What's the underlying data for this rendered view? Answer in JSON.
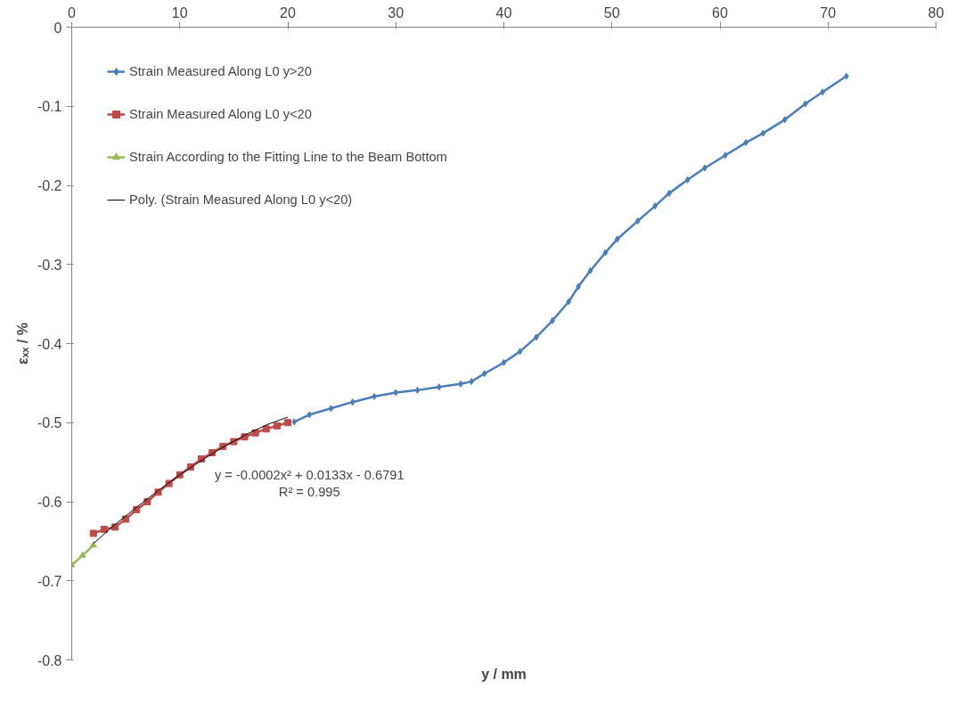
{
  "chart_data": {
    "type": "line",
    "xlabel": "y / mm",
    "ylabel": "εₓₓ / %",
    "xlim": [
      0,
      80
    ],
    "xticks": [
      0,
      10,
      20,
      30,
      40,
      50,
      60,
      70,
      80
    ],
    "ylim": [
      -0.8,
      0
    ],
    "yticks": [
      0,
      -0.1,
      -0.2,
      -0.3,
      -0.4,
      -0.5,
      -0.6,
      -0.7,
      -0.8
    ],
    "grid": false,
    "legend": "top left",
    "annotations": [
      "y = -0.0002x² + 0.0133x - 0.6791",
      "R² = 0.995"
    ],
    "series": [
      {
        "name": "Strain Measured Along L0 y>20",
        "color": "#4a7ebb",
        "marker": "diamond",
        "x": [
          20.6,
          22,
          24,
          26,
          28,
          30,
          32,
          34,
          36,
          37,
          38.2,
          40,
          41.5,
          43,
          44.5,
          46,
          46.9,
          48,
          49.4,
          50.5,
          52.4,
          54,
          55.3,
          57,
          58.6,
          60.5,
          62.4,
          64,
          66,
          67.9,
          69.5,
          71.7
        ],
        "values": [
          -0.499,
          -0.49,
          -0.482,
          -0.474,
          -0.467,
          -0.462,
          -0.459,
          -0.455,
          -0.451,
          -0.448,
          -0.438,
          -0.424,
          -0.41,
          -0.392,
          -0.371,
          -0.347,
          -0.328,
          -0.308,
          -0.285,
          -0.268,
          -0.245,
          -0.226,
          -0.21,
          -0.193,
          -0.178,
          -0.162,
          -0.146,
          -0.134,
          -0.117,
          -0.097,
          -0.082,
          -0.062
        ]
      },
      {
        "name": "Strain Measured Along L0 y<20",
        "color": "#be4b48",
        "marker": "square",
        "x": [
          2,
          3,
          4,
          5,
          6,
          7,
          8,
          9,
          10,
          11,
          12,
          13,
          14,
          15,
          16,
          17,
          18,
          19,
          20
        ],
        "values": [
          -0.64,
          -0.635,
          -0.632,
          -0.622,
          -0.61,
          -0.6,
          -0.588,
          -0.577,
          -0.566,
          -0.556,
          -0.546,
          -0.538,
          -0.53,
          -0.524,
          -0.518,
          -0.513,
          -0.508,
          -0.504,
          -0.5
        ]
      },
      {
        "name": "Strain According to the Fitting Line to the Beam Bottom",
        "color": "#98b954",
        "marker": "triangle",
        "x": [
          0,
          1,
          2
        ],
        "values": [
          -0.68,
          -0.668,
          -0.655
        ]
      },
      {
        "name": "Poly. (Strain Measured Along L0 y<20)",
        "color": "#000000",
        "x": [
          2,
          4,
          6,
          8,
          10,
          12,
          14,
          16,
          18,
          20
        ],
        "values": [
          -0.653,
          -0.629,
          -0.607,
          -0.586,
          -0.566,
          -0.548,
          -0.531,
          -0.516,
          -0.503,
          -0.493
        ]
      }
    ]
  }
}
